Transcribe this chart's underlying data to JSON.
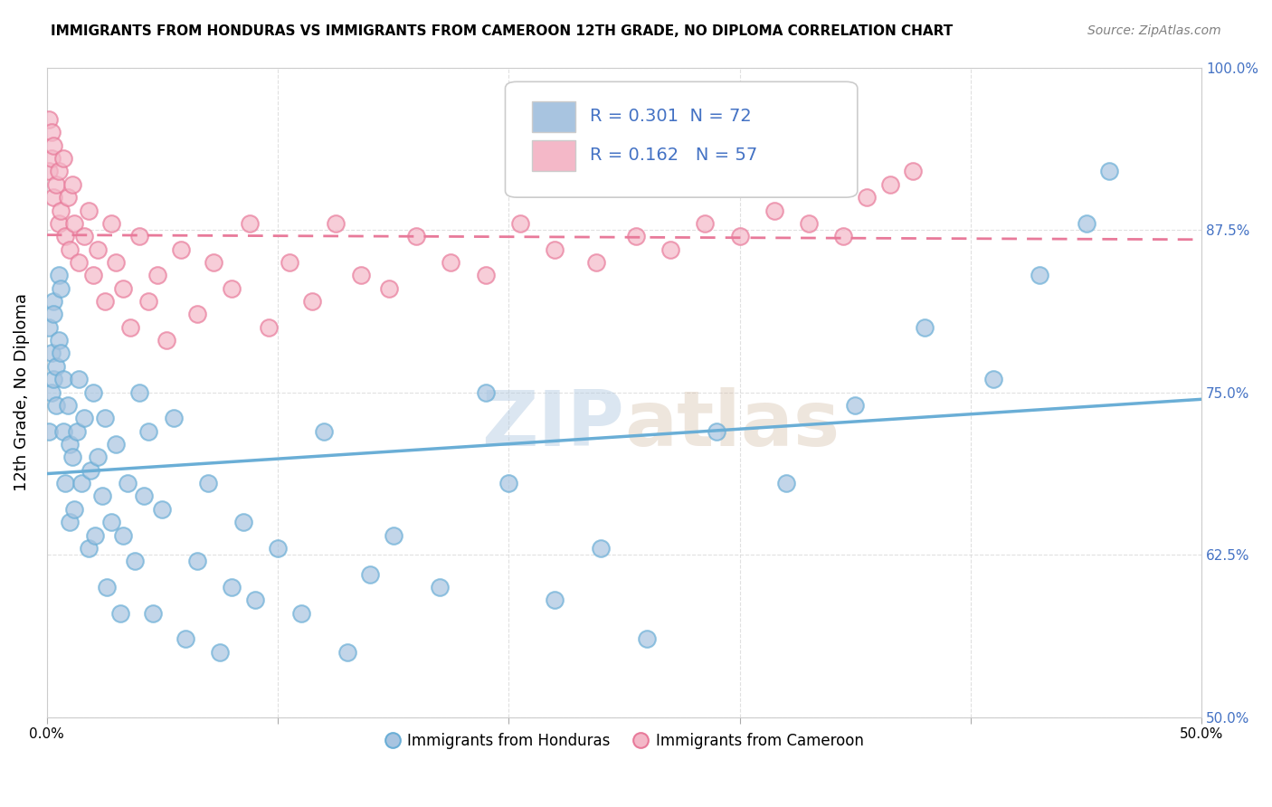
{
  "title": "IMMIGRANTS FROM HONDURAS VS IMMIGRANTS FROM CAMEROON 12TH GRADE, NO DIPLOMA CORRELATION CHART",
  "source": "Source: ZipAtlas.com",
  "ylabel": "12th Grade, No Diploma",
  "xlim": [
    0.0,
    0.5
  ],
  "ylim": [
    0.5,
    1.0
  ],
  "x_ticks": [
    0.0,
    0.1,
    0.2,
    0.3,
    0.4,
    0.5
  ],
  "x_tick_labels": [
    "0.0%",
    "",
    "",
    "",
    "",
    "50.0%"
  ],
  "y_ticks": [
    0.5,
    0.625,
    0.75,
    0.875,
    1.0
  ],
  "y_tick_labels": [
    "50.0%",
    "62.5%",
    "75.0%",
    "87.5%",
    "100.0%"
  ],
  "legend_label1": "Immigrants from Honduras",
  "legend_label2": "Immigrants from Cameroon",
  "r1": 0.301,
  "n1": 72,
  "r2": 0.162,
  "n2": 57,
  "color_honduras": "#a8c4e0",
  "color_cameroon": "#f4b8c8",
  "line_color_honduras": "#6aaed6",
  "line_color_cameroon": "#e87a9a",
  "watermark_zip": "ZIP",
  "watermark_atlas": "atlas",
  "honduras_x": [
    0.001,
    0.001,
    0.002,
    0.002,
    0.003,
    0.003,
    0.003,
    0.004,
    0.004,
    0.005,
    0.005,
    0.006,
    0.006,
    0.007,
    0.007,
    0.008,
    0.009,
    0.01,
    0.01,
    0.011,
    0.012,
    0.013,
    0.014,
    0.015,
    0.016,
    0.018,
    0.019,
    0.02,
    0.021,
    0.022,
    0.024,
    0.025,
    0.026,
    0.028,
    0.03,
    0.032,
    0.033,
    0.035,
    0.038,
    0.04,
    0.042,
    0.044,
    0.046,
    0.05,
    0.055,
    0.06,
    0.065,
    0.07,
    0.075,
    0.08,
    0.085,
    0.09,
    0.1,
    0.11,
    0.12,
    0.13,
    0.14,
    0.15,
    0.17,
    0.19,
    0.2,
    0.22,
    0.24,
    0.26,
    0.29,
    0.32,
    0.35,
    0.38,
    0.41,
    0.43,
    0.45,
    0.46
  ],
  "honduras_y": [
    0.72,
    0.8,
    0.75,
    0.78,
    0.82,
    0.76,
    0.81,
    0.77,
    0.74,
    0.79,
    0.84,
    0.83,
    0.78,
    0.76,
    0.72,
    0.68,
    0.74,
    0.71,
    0.65,
    0.7,
    0.66,
    0.72,
    0.76,
    0.68,
    0.73,
    0.63,
    0.69,
    0.75,
    0.64,
    0.7,
    0.67,
    0.73,
    0.6,
    0.65,
    0.71,
    0.58,
    0.64,
    0.68,
    0.62,
    0.75,
    0.67,
    0.72,
    0.58,
    0.66,
    0.73,
    0.56,
    0.62,
    0.68,
    0.55,
    0.6,
    0.65,
    0.59,
    0.63,
    0.58,
    0.72,
    0.55,
    0.61,
    0.64,
    0.6,
    0.75,
    0.68,
    0.59,
    0.63,
    0.56,
    0.72,
    0.68,
    0.74,
    0.8,
    0.76,
    0.84,
    0.88,
    0.92
  ],
  "cameroon_x": [
    0.001,
    0.001,
    0.002,
    0.002,
    0.003,
    0.003,
    0.004,
    0.005,
    0.005,
    0.006,
    0.007,
    0.008,
    0.009,
    0.01,
    0.011,
    0.012,
    0.014,
    0.016,
    0.018,
    0.02,
    0.022,
    0.025,
    0.028,
    0.03,
    0.033,
    0.036,
    0.04,
    0.044,
    0.048,
    0.052,
    0.058,
    0.065,
    0.072,
    0.08,
    0.088,
    0.096,
    0.105,
    0.115,
    0.125,
    0.136,
    0.148,
    0.16,
    0.175,
    0.19,
    0.205,
    0.22,
    0.238,
    0.255,
    0.27,
    0.285,
    0.3,
    0.315,
    0.33,
    0.345,
    0.355,
    0.365,
    0.375
  ],
  "cameroon_y": [
    0.92,
    0.96,
    0.93,
    0.95,
    0.9,
    0.94,
    0.91,
    0.88,
    0.92,
    0.89,
    0.93,
    0.87,
    0.9,
    0.86,
    0.91,
    0.88,
    0.85,
    0.87,
    0.89,
    0.84,
    0.86,
    0.82,
    0.88,
    0.85,
    0.83,
    0.8,
    0.87,
    0.82,
    0.84,
    0.79,
    0.86,
    0.81,
    0.85,
    0.83,
    0.88,
    0.8,
    0.85,
    0.82,
    0.88,
    0.84,
    0.83,
    0.87,
    0.85,
    0.84,
    0.88,
    0.86,
    0.85,
    0.87,
    0.86,
    0.88,
    0.87,
    0.89,
    0.88,
    0.87,
    0.9,
    0.91,
    0.92
  ]
}
